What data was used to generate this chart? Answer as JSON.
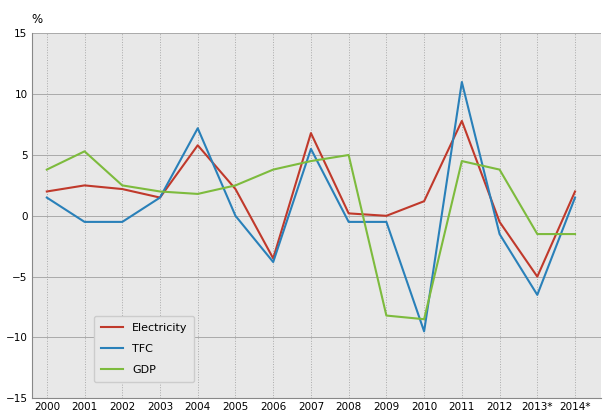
{
  "years": [
    2000,
    2001,
    2002,
    2003,
    2004,
    2005,
    2006,
    2007,
    2008,
    2009,
    2010,
    2011,
    2012,
    2013,
    2014
  ],
  "year_labels": [
    "2000",
    "2001",
    "2002",
    "2003",
    "2004",
    "2005",
    "2006",
    "2007",
    "2008",
    "2009",
    "2010",
    "2011",
    "2012",
    "2013*",
    "2014*"
  ],
  "electricity": [
    2.0,
    2.5,
    2.2,
    1.5,
    5.8,
    2.2,
    -3.5,
    6.8,
    0.2,
    0.0,
    1.2,
    7.8,
    -0.5,
    -5.0,
    2.0
  ],
  "tfc": [
    1.5,
    -0.5,
    -0.5,
    1.5,
    7.2,
    0.0,
    -3.8,
    5.5,
    -0.5,
    -0.5,
    -9.5,
    11.0,
    -1.5,
    -6.5,
    1.5
  ],
  "gdp": [
    3.8,
    5.3,
    2.5,
    2.0,
    1.8,
    2.5,
    3.8,
    4.5,
    5.0,
    -8.2,
    -8.5,
    4.5,
    3.8,
    -1.5,
    -1.5
  ],
  "electricity_color": "#c0392b",
  "tfc_color": "#2980b9",
  "gdp_color": "#7dbb3d",
  "ylim": [
    -15,
    15
  ],
  "yticks": [
    -15,
    -10,
    -5,
    0,
    5,
    10,
    15
  ],
  "grid_color_h": "#aaaaaa",
  "grid_color_v": "#aaaaaa",
  "background_color": "#ffffff",
  "plot_bg_color": "#e8e8e8",
  "ylabel": "%",
  "legend_labels": [
    "Electricity",
    "TFC",
    "GDP"
  ]
}
